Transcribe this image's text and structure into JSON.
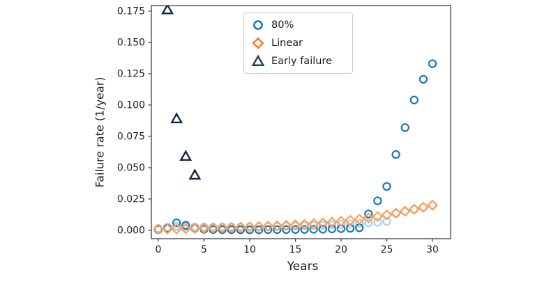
{
  "chart_data": {
    "type": "scatter",
    "title": "",
    "xlabel": "Years",
    "ylabel": "Failure rate (1/year)",
    "xlim": [
      -0.76,
      31.98
    ],
    "ylim": [
      -0.0067,
      0.1794
    ],
    "grid": false,
    "axis_color": "#3d3d3d",
    "text_color": "#1c1c1c",
    "x_ticks": [
      0,
      5,
      10,
      15,
      20,
      25,
      30
    ],
    "x_tick_labels": [
      "0",
      "5",
      "10",
      "15",
      "20",
      "25",
      "30"
    ],
    "y_ticks": [
      0.0,
      0.025,
      0.05,
      0.075,
      0.1,
      0.125,
      0.15,
      0.175
    ],
    "y_tick_labels": [
      "0.000",
      "0.025",
      "0.050",
      "0.075",
      "0.100",
      "0.125",
      "0.150",
      "0.175"
    ],
    "legend": {
      "position": "upper-left-inside",
      "border_color": "#c9c9c9",
      "background": "#ffffff"
    },
    "series": [
      {
        "name": "",
        "in_legend": false,
        "marker": "circle",
        "color": "#abcfe9",
        "x": [
          0,
          1,
          2,
          3,
          4,
          5,
          6,
          7,
          8,
          9,
          10,
          11,
          12,
          13,
          14,
          15,
          16,
          17,
          18,
          19,
          20,
          21,
          22,
          23,
          24,
          25,
          26,
          27,
          28,
          29,
          30
        ],
        "y": [
          0.0015,
          0.0025,
          0.0032,
          0.003,
          0.0028,
          0.0027,
          0.0026,
          0.0026,
          0.0026,
          0.0026,
          0.0027,
          0.0028,
          0.0029,
          0.003,
          0.0032,
          0.0033,
          0.0035,
          0.0038,
          0.004,
          0.0043,
          0.0047,
          0.0051,
          0.0055,
          0.006,
          0.0065,
          0.0071,
          0.0134,
          0.0152,
          0.0168,
          0.0184,
          0.02
        ]
      },
      {
        "name": "80%",
        "in_legend": true,
        "marker": "circle",
        "color": "#1f77b4",
        "x": [
          0,
          1,
          2,
          3,
          4,
          5,
          6,
          7,
          8,
          9,
          10,
          11,
          12,
          13,
          14,
          15,
          16,
          17,
          18,
          19,
          20,
          21,
          22,
          23,
          24,
          25,
          26,
          27,
          28,
          29,
          30
        ],
        "y": [
          0.0005,
          0.0015,
          0.006,
          0.004,
          0.0015,
          0.0008,
          0.0006,
          0.0005,
          0.0005,
          0.0004,
          0.0004,
          0.0004,
          0.0005,
          0.0005,
          0.0006,
          0.0006,
          0.0007,
          0.0008,
          0.0009,
          0.0011,
          0.0013,
          0.0016,
          0.002,
          0.013,
          0.0235,
          0.035,
          0.0605,
          0.082,
          0.104,
          0.1205,
          0.133
        ]
      },
      {
        "name": "Linear",
        "in_legend": true,
        "marker": "diamond",
        "color": "#f9a05c",
        "legend_color": "#f58220",
        "x": [
          0,
          1,
          2,
          3,
          4,
          5,
          6,
          7,
          8,
          9,
          10,
          11,
          12,
          13,
          14,
          15,
          16,
          17,
          18,
          19,
          20,
          21,
          22,
          23,
          24,
          25,
          26,
          27,
          28,
          29,
          30
        ],
        "y": [
          0.0008,
          0.001,
          0.0011,
          0.0013,
          0.0014,
          0.0016,
          0.0018,
          0.002,
          0.0022,
          0.0024,
          0.0027,
          0.003,
          0.0033,
          0.0036,
          0.004,
          0.0044,
          0.0048,
          0.0053,
          0.0059,
          0.0065,
          0.0072,
          0.008,
          0.0089,
          0.0099,
          0.011,
          0.0123,
          0.0137,
          0.0152,
          0.0168,
          0.0184,
          0.02
        ]
      },
      {
        "name": "Early failure",
        "in_legend": true,
        "marker": "triangle",
        "color": "#14273f",
        "legend_color": "#1d4266",
        "x": [
          1,
          2,
          3,
          4
        ],
        "y": [
          0.176,
          0.089,
          0.059,
          0.044
        ]
      }
    ]
  }
}
